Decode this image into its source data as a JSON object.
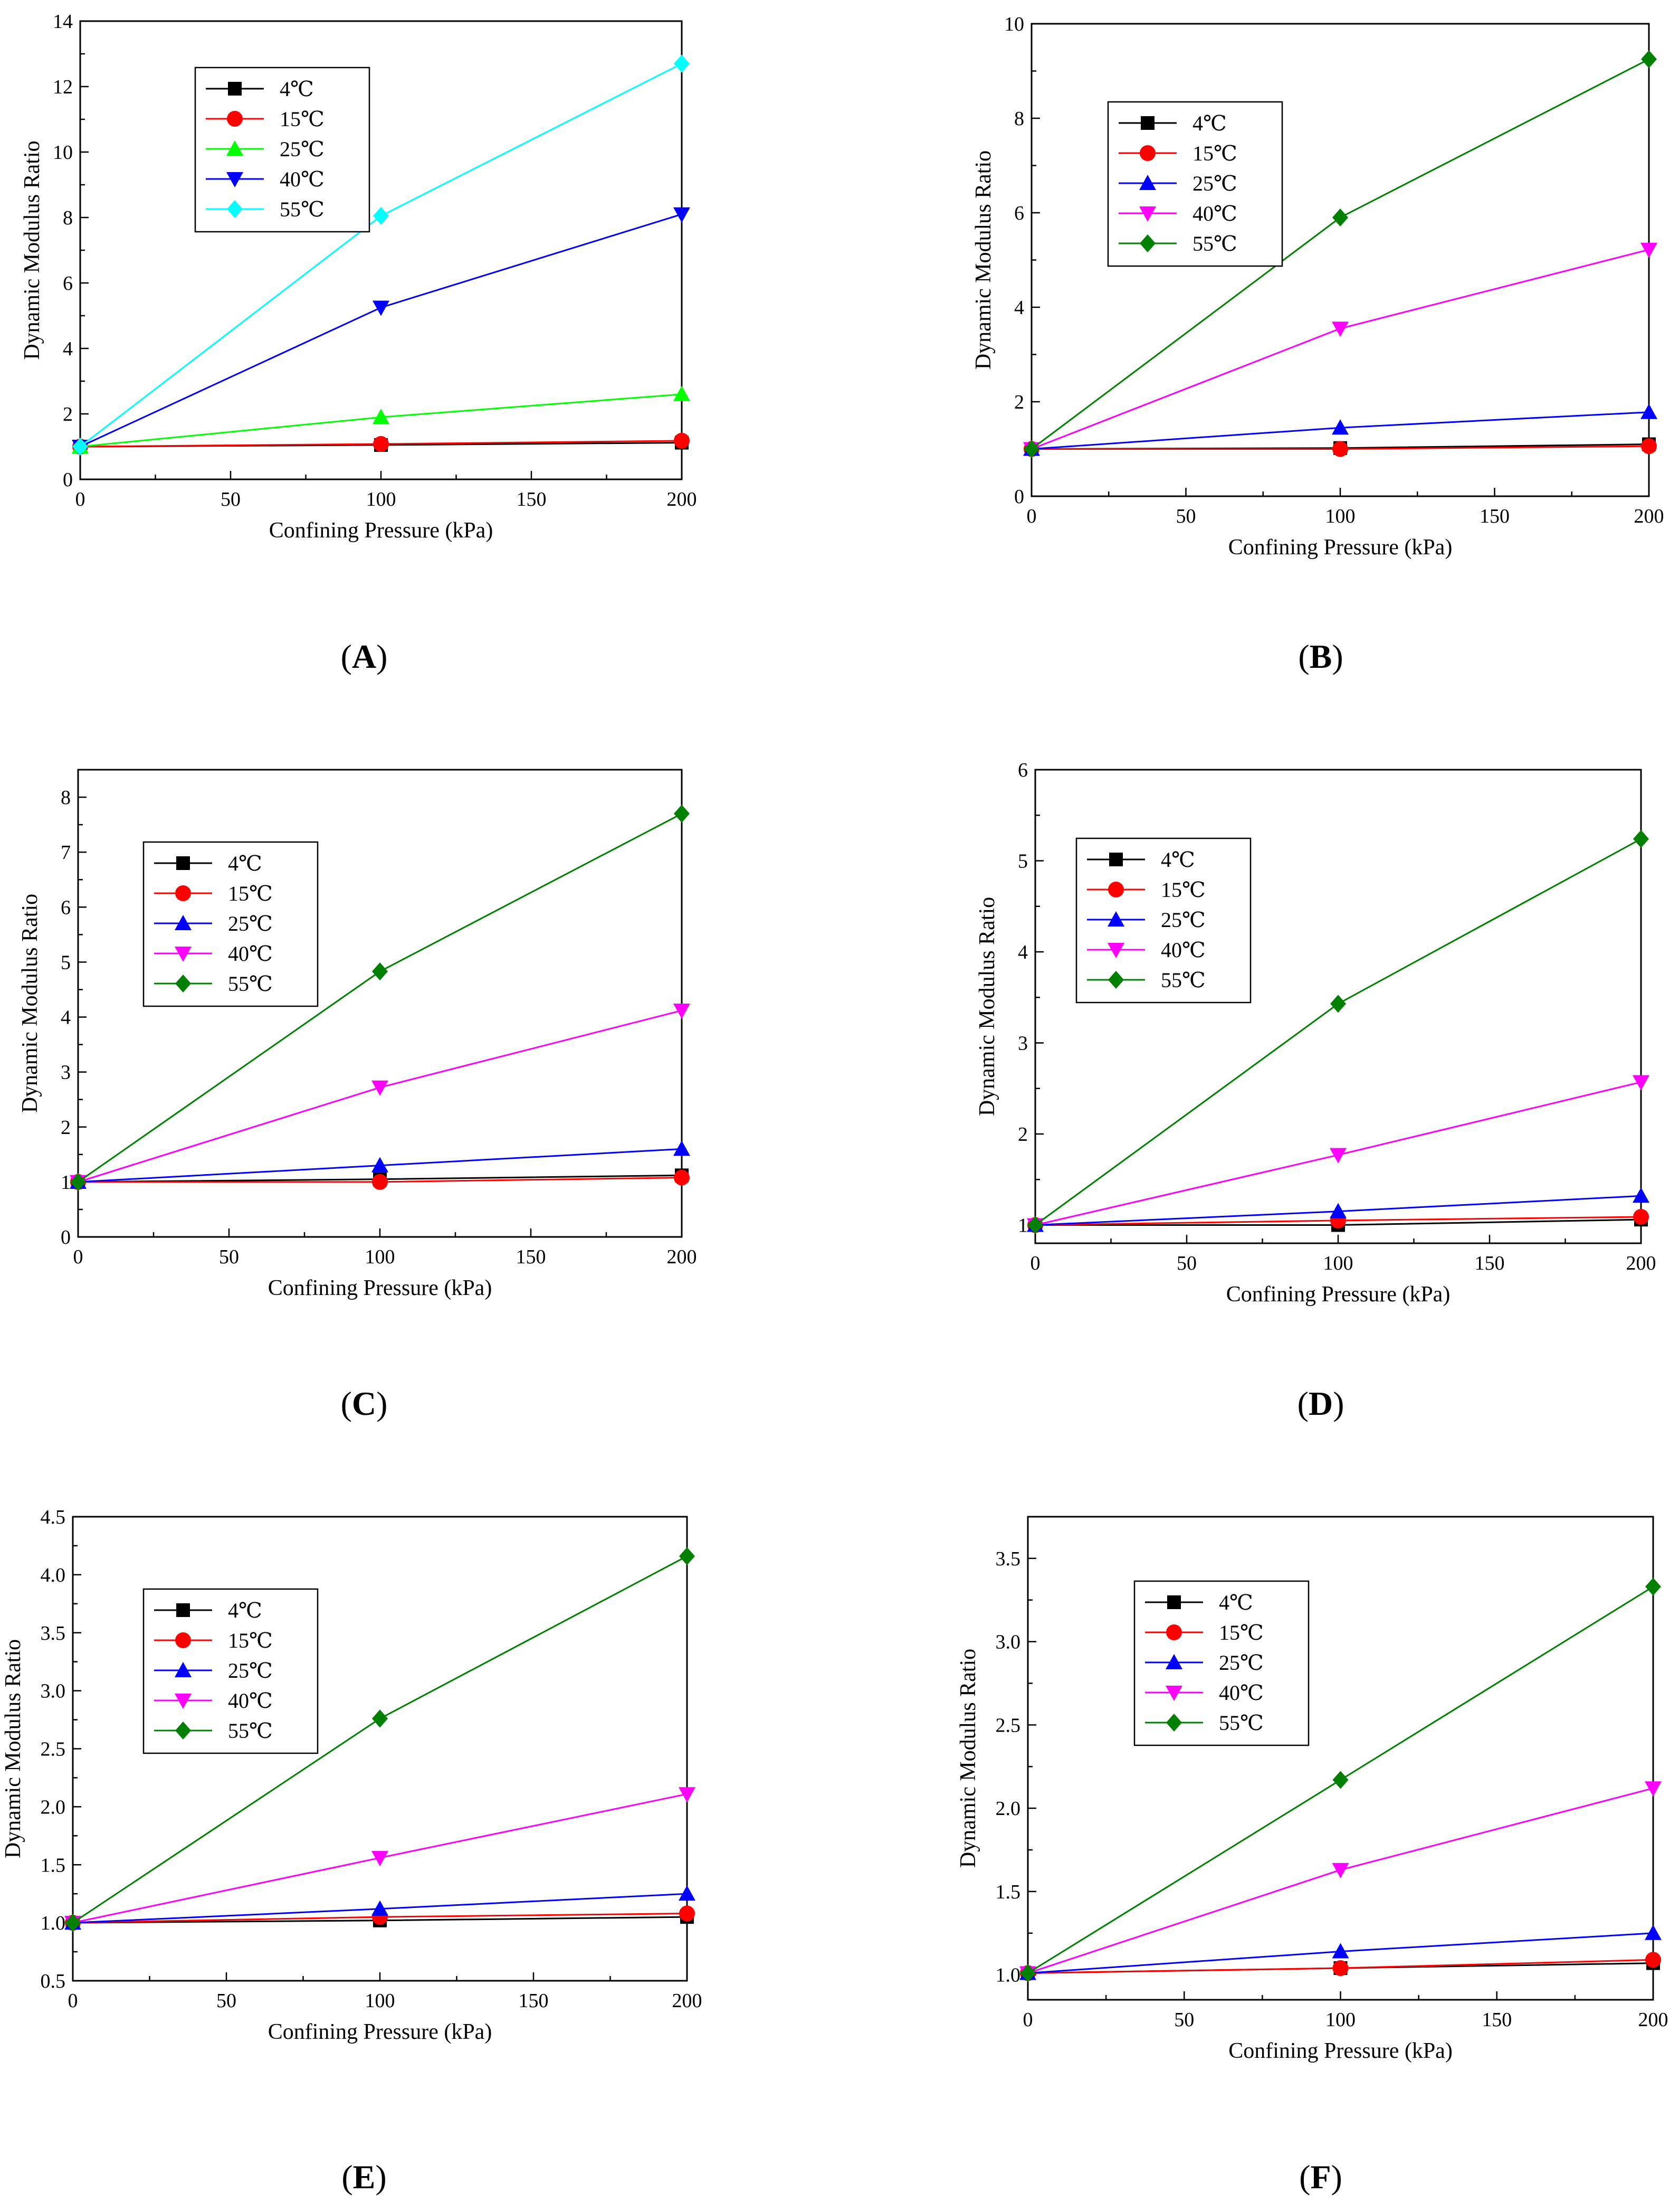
{
  "figure": {
    "panel_count": 6
  },
  "chart_data": [
    {
      "panel": "A",
      "type": "line",
      "title": "",
      "xlabel": "Confining Pressure (kPa)",
      "ylabel": "Dynamic Modulus Ratio",
      "x": [
        0,
        100,
        200
      ],
      "xlim": [
        0,
        200
      ],
      "xticks": [
        "0",
        "50",
        "100",
        "150",
        "200"
      ],
      "ylim": [
        0,
        14
      ],
      "yticks": [
        "0",
        "2",
        "4",
        "6",
        "8",
        "10",
        "12",
        "14"
      ],
      "legend_position": "top-left",
      "series": [
        {
          "name": "4℃",
          "marker": "square",
          "color": "#000000",
          "values": [
            1.0,
            1.05,
            1.12
          ]
        },
        {
          "name": "15℃",
          "marker": "circle",
          "color": "#ff0000",
          "values": [
            1.0,
            1.08,
            1.18
          ]
        },
        {
          "name": "25℃",
          "marker": "triangle",
          "color": "#00ff00",
          "values": [
            1.0,
            1.9,
            2.6
          ]
        },
        {
          "name": "40℃",
          "marker": "tri-down",
          "color": "#0000ff",
          "values": [
            1.0,
            5.25,
            8.1
          ]
        },
        {
          "name": "55℃",
          "marker": "diamond",
          "color": "#00ffff",
          "values": [
            1.0,
            8.05,
            12.7
          ]
        }
      ]
    },
    {
      "panel": "B",
      "type": "line",
      "title": "",
      "xlabel": "Confining Pressure (kPa)",
      "ylabel": "Dynamic Modulus Ratio",
      "x": [
        0,
        100,
        200
      ],
      "xlim": [
        0,
        200
      ],
      "xticks": [
        "0",
        "50",
        "100",
        "150",
        "200"
      ],
      "ylim": [
        0,
        10
      ],
      "yticks": [
        "0",
        "2",
        "4",
        "6",
        "8",
        "10"
      ],
      "legend_position": "top-left",
      "series": [
        {
          "name": "4℃",
          "marker": "square",
          "color": "#000000",
          "values": [
            1.0,
            1.02,
            1.1
          ]
        },
        {
          "name": "15℃",
          "marker": "circle",
          "color": "#ff0000",
          "values": [
            1.0,
            1.0,
            1.06
          ]
        },
        {
          "name": "25℃",
          "marker": "triangle",
          "color": "#0000ff",
          "values": [
            1.0,
            1.45,
            1.78
          ]
        },
        {
          "name": "40℃",
          "marker": "tri-down",
          "color": "#ff00ff",
          "values": [
            1.0,
            3.55,
            5.22
          ]
        },
        {
          "name": "55℃",
          "marker": "diamond",
          "color": "#008000",
          "values": [
            1.0,
            5.9,
            9.25
          ]
        }
      ]
    },
    {
      "panel": "C",
      "type": "line",
      "title": "",
      "xlabel": "Confining Pressure (kPa)",
      "ylabel": "Dynamic Modulus Ratio",
      "x": [
        0,
        100,
        200
      ],
      "xlim": [
        0,
        200
      ],
      "xticks": [
        "0",
        "50",
        "100",
        "150",
        "200"
      ],
      "ylim": [
        0,
        8.5
      ],
      "yticks": [
        "0",
        "1",
        "2",
        "3",
        "4",
        "5",
        "6",
        "7",
        "8"
      ],
      "legend_position": "top-left",
      "series": [
        {
          "name": "4℃",
          "marker": "square",
          "color": "#000000",
          "values": [
            1.0,
            1.05,
            1.12
          ]
        },
        {
          "name": "15℃",
          "marker": "circle",
          "color": "#ff0000",
          "values": [
            1.0,
            1.0,
            1.08
          ]
        },
        {
          "name": "25℃",
          "marker": "triangle",
          "color": "#0000ff",
          "values": [
            1.0,
            1.3,
            1.6
          ]
        },
        {
          "name": "40℃",
          "marker": "tri-down",
          "color": "#ff00ff",
          "values": [
            1.0,
            2.72,
            4.12
          ]
        },
        {
          "name": "55℃",
          "marker": "diamond",
          "color": "#008000",
          "values": [
            1.0,
            4.83,
            7.7
          ]
        }
      ]
    },
    {
      "panel": "D",
      "type": "line",
      "title": "",
      "xlabel": "Confining Pressure (kPa)",
      "ylabel": "Dynamic Modulus Ratio",
      "x": [
        0,
        100,
        200
      ],
      "xlim": [
        0,
        200
      ],
      "xticks": [
        "0",
        "50",
        "100",
        "150",
        "200"
      ],
      "ylim": [
        0.8,
        6
      ],
      "yticks": [
        "1",
        "2",
        "3",
        "4",
        "5",
        "6"
      ],
      "legend_position": "top-left",
      "series": [
        {
          "name": "4℃",
          "marker": "square",
          "color": "#000000",
          "values": [
            1.0,
            1.0,
            1.06
          ]
        },
        {
          "name": "15℃",
          "marker": "circle",
          "color": "#ff0000",
          "values": [
            1.0,
            1.05,
            1.09
          ]
        },
        {
          "name": "25℃",
          "marker": "triangle",
          "color": "#0000ff",
          "values": [
            1.0,
            1.15,
            1.32
          ]
        },
        {
          "name": "40℃",
          "marker": "tri-down",
          "color": "#ff00ff",
          "values": [
            1.0,
            1.77,
            2.57
          ]
        },
        {
          "name": "55℃",
          "marker": "diamond",
          "color": "#008000",
          "values": [
            1.0,
            3.43,
            5.24
          ]
        }
      ]
    },
    {
      "panel": "E",
      "type": "line",
      "title": "",
      "xlabel": "Confining Pressure (kPa)",
      "ylabel": "Dynamic Modulus Ratio",
      "x": [
        0,
        100,
        200
      ],
      "xlim": [
        0,
        200
      ],
      "xticks": [
        "0",
        "50",
        "100",
        "150",
        "200"
      ],
      "ylim": [
        0.5,
        4.5
      ],
      "yticks": [
        "0.5",
        "1.0",
        "1.5",
        "2.0",
        "2.5",
        "3.0",
        "3.5",
        "4.0",
        "4.5"
      ],
      "legend_position": "top-left",
      "series": [
        {
          "name": "4℃",
          "marker": "square",
          "color": "#000000",
          "values": [
            1.0,
            1.02,
            1.05
          ]
        },
        {
          "name": "15℃",
          "marker": "circle",
          "color": "#ff0000",
          "values": [
            1.0,
            1.05,
            1.08
          ]
        },
        {
          "name": "25℃",
          "marker": "triangle",
          "color": "#0000ff",
          "values": [
            1.0,
            1.12,
            1.25
          ]
        },
        {
          "name": "40℃",
          "marker": "tri-down",
          "color": "#ff00ff",
          "values": [
            1.0,
            1.56,
            2.11
          ]
        },
        {
          "name": "55℃",
          "marker": "diamond",
          "color": "#008000",
          "values": [
            1.0,
            2.76,
            4.16
          ]
        }
      ]
    },
    {
      "panel": "F",
      "type": "line",
      "title": "",
      "xlabel": "Confining Pressure (kPa)",
      "ylabel": "Dynamic Modulus Ratio",
      "x": [
        0,
        100,
        200
      ],
      "xlim": [
        0,
        200
      ],
      "xticks": [
        "0",
        "50",
        "100",
        "150",
        "200"
      ],
      "ylim": [
        0.85,
        3.75
      ],
      "yticks": [
        "1.0",
        "1.5",
        "2.0",
        "2.5",
        "3.0",
        "3.5"
      ],
      "legend_position": "top-left",
      "series": [
        {
          "name": "4℃",
          "marker": "square",
          "color": "#000000",
          "values": [
            1.01,
            1.04,
            1.07
          ]
        },
        {
          "name": "15℃",
          "marker": "circle",
          "color": "#ff0000",
          "values": [
            1.01,
            1.04,
            1.09
          ]
        },
        {
          "name": "25℃",
          "marker": "triangle",
          "color": "#0000ff",
          "values": [
            1.01,
            1.14,
            1.25
          ]
        },
        {
          "name": "40℃",
          "marker": "tri-down",
          "color": "#ff00ff",
          "values": [
            1.01,
            1.63,
            2.12
          ]
        },
        {
          "name": "55℃",
          "marker": "diamond",
          "color": "#008000",
          "values": [
            1.01,
            2.17,
            3.33
          ]
        }
      ]
    }
  ]
}
